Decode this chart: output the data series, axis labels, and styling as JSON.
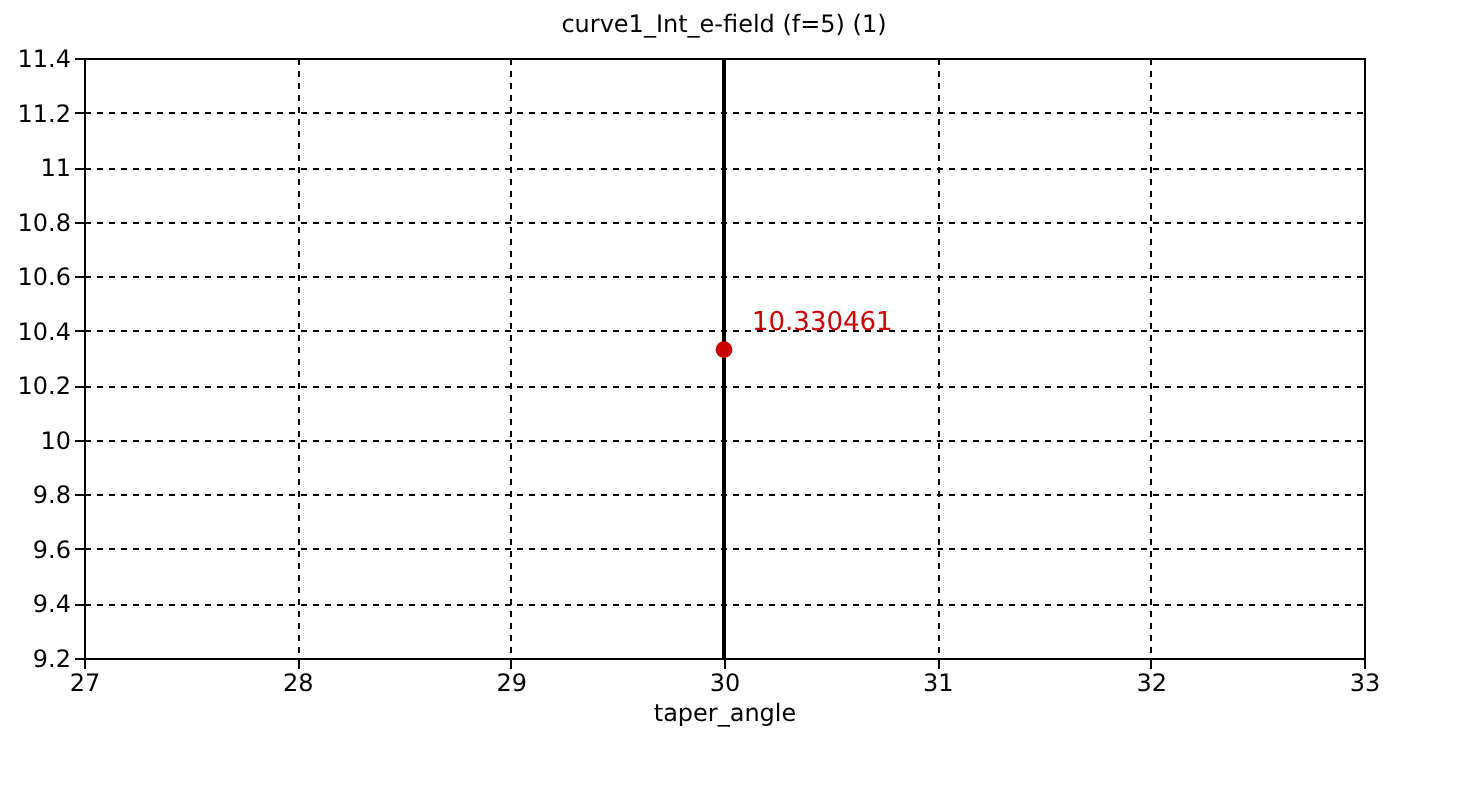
{
  "chart_data": {
    "type": "scatter",
    "title": "curve1_Int_e-field (f=5) (1)",
    "xlabel": "taper_angle",
    "x": [
      30
    ],
    "values": [
      10.330461
    ],
    "color": "#cc0000",
    "marker": "circle",
    "data_labels": true,
    "xlim": [
      27,
      33
    ],
    "xticks": [
      27,
      28,
      29,
      30,
      31,
      32,
      33
    ],
    "ylim": [
      9.2,
      11.4
    ],
    "yticks": [
      9.2,
      9.4,
      9.6,
      9.8,
      10,
      10.2,
      10.4,
      10.6,
      10.8,
      11,
      11.2,
      11.4
    ],
    "grid": true,
    "ref_lines": [
      {
        "axis": "x",
        "value": 30,
        "color": "#000000",
        "line_style": "solid"
      }
    ]
  }
}
